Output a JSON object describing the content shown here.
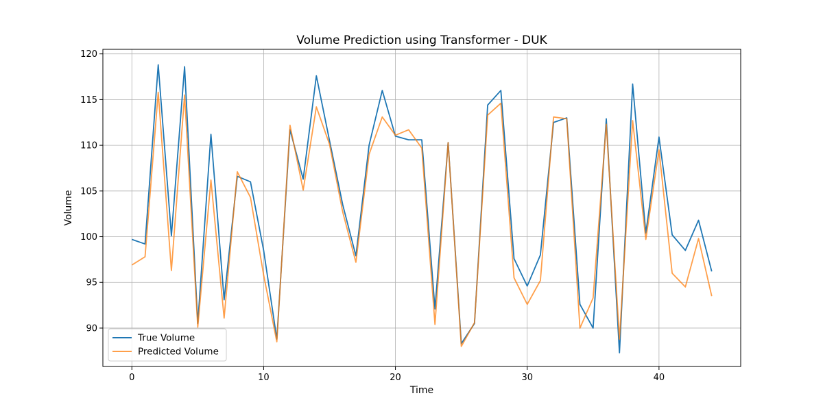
{
  "chart_data": {
    "type": "line",
    "title": "Volume Prediction using Transformer - DUK",
    "xlabel": "Time",
    "ylabel": "Volume",
    "xlim": [
      -2.2,
      46.2
    ],
    "ylim": [
      85.8,
      120.5
    ],
    "xticks": [
      0,
      10,
      20,
      30,
      40
    ],
    "yticks": [
      90,
      95,
      100,
      105,
      110,
      115,
      120
    ],
    "grid": true,
    "legend_position": "lower-left",
    "x": [
      0,
      1,
      2,
      3,
      4,
      5,
      6,
      7,
      8,
      9,
      10,
      11,
      12,
      13,
      14,
      15,
      16,
      17,
      18,
      19,
      20,
      21,
      22,
      23,
      24,
      25,
      26,
      27,
      28,
      29,
      30,
      31,
      32,
      33,
      34,
      35,
      36,
      37,
      38,
      39,
      40,
      41,
      42,
      43,
      44
    ],
    "series": [
      {
        "name": "True Volume",
        "color": "#1f77b4",
        "values": [
          99.7,
          99.2,
          118.8,
          100.1,
          118.6,
          90.5,
          111.2,
          93.1,
          106.6,
          106.0,
          98.5,
          88.8,
          111.7,
          106.3,
          117.6,
          110.5,
          103.5,
          97.9,
          110.0,
          116.0,
          111.0,
          110.6,
          110.6,
          92.1,
          110.3,
          88.3,
          90.5,
          114.4,
          116.0,
          97.6,
          94.6,
          98.0,
          112.5,
          113.0,
          92.6,
          90.0,
          112.9,
          87.3,
          116.7,
          100.4,
          110.9,
          100.2,
          98.5,
          101.8,
          96.2
        ]
      },
      {
        "name": "Predicted Volume",
        "color": "#ff7f0e",
        "values": [
          96.9,
          97.8,
          115.8,
          96.3,
          115.5,
          90.1,
          106.2,
          91.1,
          107.1,
          104.3,
          95.8,
          88.5,
          112.2,
          105.1,
          114.2,
          110.1,
          102.7,
          97.2,
          109.0,
          113.1,
          111.1,
          111.7,
          109.7,
          90.4,
          110.3,
          88.0,
          90.6,
          113.3,
          114.6,
          95.5,
          92.6,
          95.2,
          113.1,
          112.9,
          90.0,
          93.3,
          112.3,
          88.8,
          112.7,
          99.7,
          109.5,
          96.0,
          94.5,
          99.8,
          93.5
        ]
      }
    ]
  }
}
